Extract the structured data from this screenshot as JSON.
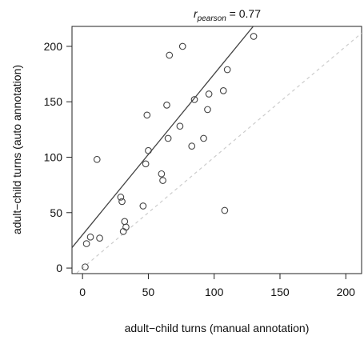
{
  "chart_data": {
    "type": "scatter",
    "title": {
      "r_symbol": "r",
      "subscript": "pearson",
      "equals_value": " = 0.77"
    },
    "xlabel": "adult−child turns (manual annotation)",
    "ylabel": "adult−child turns (auto annotation)",
    "xlim": [
      -8,
      212
    ],
    "ylim": [
      -5,
      218
    ],
    "x_ticks": [
      0,
      50,
      100,
      150,
      200
    ],
    "y_ticks": [
      0,
      50,
      100,
      150,
      200
    ],
    "x_tick_labels": [
      "0",
      "50",
      "100",
      "150",
      "200"
    ],
    "y_tick_labels": [
      "0",
      "50",
      "100",
      "150",
      "200"
    ],
    "grid": false,
    "points": [
      {
        "x": 2,
        "y": 1
      },
      {
        "x": 3,
        "y": 22
      },
      {
        "x": 6,
        "y": 28
      },
      {
        "x": 11,
        "y": 98
      },
      {
        "x": 13,
        "y": 27
      },
      {
        "x": 29,
        "y": 64
      },
      {
        "x": 30,
        "y": 60
      },
      {
        "x": 31,
        "y": 33
      },
      {
        "x": 32,
        "y": 42
      },
      {
        "x": 33,
        "y": 37
      },
      {
        "x": 46,
        "y": 56
      },
      {
        "x": 48,
        "y": 94
      },
      {
        "x": 49,
        "y": 138
      },
      {
        "x": 50,
        "y": 106
      },
      {
        "x": 60,
        "y": 85
      },
      {
        "x": 61,
        "y": 79
      },
      {
        "x": 64,
        "y": 147
      },
      {
        "x": 65,
        "y": 117
      },
      {
        "x": 66,
        "y": 192
      },
      {
        "x": 74,
        "y": 128
      },
      {
        "x": 76,
        "y": 200
      },
      {
        "x": 83,
        "y": 110
      },
      {
        "x": 85,
        "y": 152
      },
      {
        "x": 92,
        "y": 117
      },
      {
        "x": 95,
        "y": 143
      },
      {
        "x": 96,
        "y": 157
      },
      {
        "x": 107,
        "y": 160
      },
      {
        "x": 108,
        "y": 52
      },
      {
        "x": 110,
        "y": 179
      },
      {
        "x": 130,
        "y": 209
      }
    ],
    "fit_line": {
      "slope": 1.45,
      "intercept": 30
    },
    "identity_line": {
      "slope": 1,
      "intercept": 0
    },
    "colors": {
      "points": "#444444",
      "fit_line": "#444444",
      "identity_line": "#cccccc",
      "axes": "#222222"
    }
  }
}
